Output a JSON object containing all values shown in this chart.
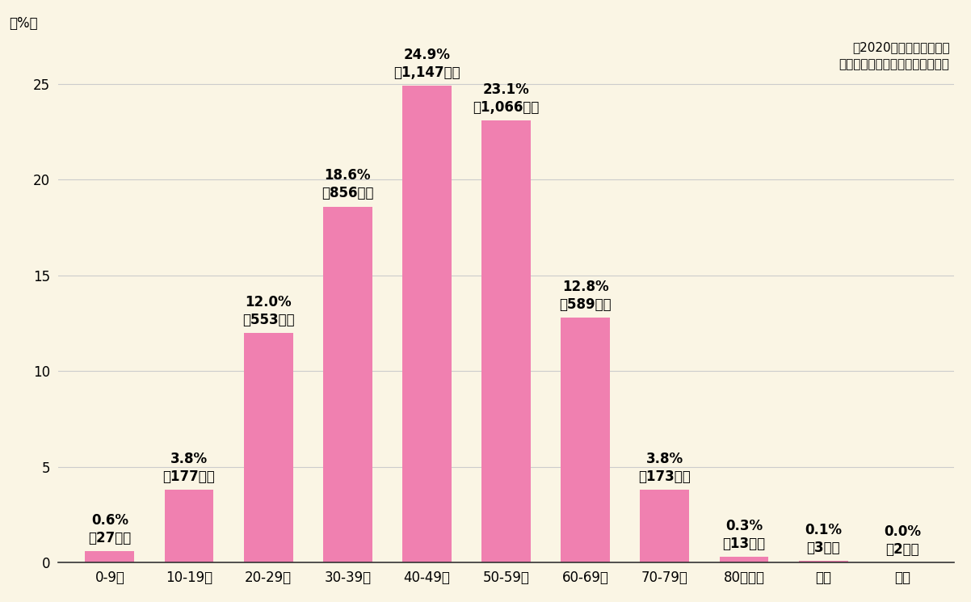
{
  "categories": [
    "0-9歳",
    "10-19歳",
    "20-29歳",
    "30-39歳",
    "40-49歳",
    "50-59歳",
    "60-69歳",
    "70-79歳",
    "80歳以上",
    "不明",
    "無答"
  ],
  "values": [
    0.6,
    3.8,
    12.0,
    18.6,
    24.9,
    23.1,
    12.8,
    3.8,
    0.3,
    0.1,
    0.0
  ],
  "counts": [
    "27人",
    "177人",
    "553人",
    "856人",
    "1,147人",
    "1,066人",
    "589人",
    "173人",
    "13人",
    "3人",
    "2人"
  ],
  "bar_color": "#f080b0",
  "background_color": "#faf5e4",
  "plot_area_color": "#faf5e4",
  "ylim": [
    0,
    27.5
  ],
  "yticks": [
    0,
    5,
    10,
    15,
    20,
    25
  ],
  "ylabel": "（%）",
  "source_line1": "『2020年リウマチ白書』",
  "source_line2": "（公社）日本リウマチ友の会より",
  "label_fontsize": 12,
  "tick_fontsize": 12,
  "ylabel_fontsize": 12,
  "source_fontsize": 11
}
